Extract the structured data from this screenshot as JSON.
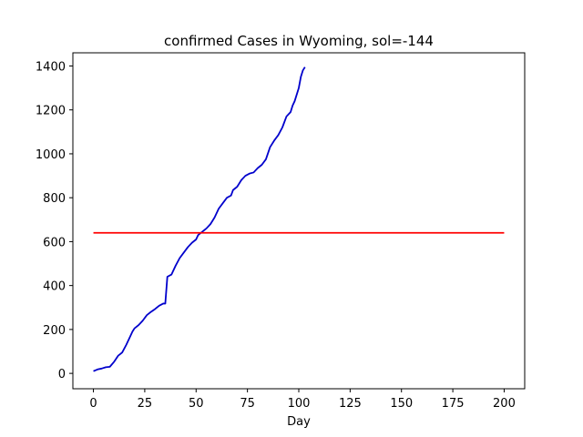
{
  "chart_data": {
    "type": "line",
    "title": "confirmed Cases in Wyoming, sol=-144",
    "xlabel": "Day",
    "ylabel": "",
    "xlim": [
      -10,
      210
    ],
    "ylim": [
      -70,
      1460
    ],
    "xticks": [
      0,
      25,
      50,
      75,
      100,
      125,
      150,
      175,
      200
    ],
    "yticks": [
      0,
      200,
      400,
      600,
      800,
      1000,
      1200,
      1400
    ],
    "grid": false,
    "series": [
      {
        "color": "#0000cc",
        "x": [
          0,
          2,
          4,
          6,
          8,
          10,
          12,
          14,
          16,
          18,
          19,
          20,
          22,
          24,
          26,
          28,
          30,
          32,
          34,
          35,
          36,
          38,
          40,
          42,
          44,
          46,
          48,
          50,
          51,
          53,
          55,
          57,
          59,
          61,
          63,
          65,
          67,
          68,
          70,
          72,
          74,
          76,
          78,
          80,
          82,
          84,
          86,
          88,
          90,
          92,
          94,
          95,
          96,
          97,
          98,
          99,
          100,
          101,
          102,
          103
        ],
        "y": [
          10,
          18,
          22,
          28,
          30,
          52,
          80,
          95,
          130,
          170,
          190,
          205,
          220,
          240,
          265,
          280,
          293,
          308,
          318,
          318,
          440,
          450,
          490,
          525,
          550,
          575,
          595,
          610,
          630,
          645,
          660,
          680,
          710,
          750,
          775,
          800,
          810,
          835,
          850,
          880,
          900,
          910,
          915,
          935,
          950,
          975,
          1030,
          1060,
          1085,
          1120,
          1170,
          1180,
          1190,
          1220,
          1240,
          1270,
          1300,
          1350,
          1380,
          1395
        ]
      },
      {
        "color": "#ff0000",
        "x": [
          0,
          200
        ],
        "y": [
          640,
          640
        ]
      }
    ]
  }
}
